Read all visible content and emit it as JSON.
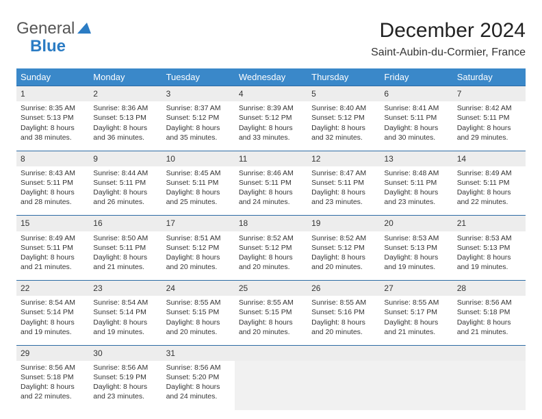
{
  "brand": {
    "part1": "General",
    "part2": "Blue"
  },
  "title": "December 2024",
  "location": "Saint-Aubin-du-Cormier, France",
  "colors": {
    "header_bg": "#3a88c9",
    "header_text": "#ffffff",
    "daynum_bg": "#ededed",
    "divider": "#2b6aa3",
    "text": "#333333",
    "brand_blue": "#2b7cc4"
  },
  "weekdays": [
    "Sunday",
    "Monday",
    "Tuesday",
    "Wednesday",
    "Thursday",
    "Friday",
    "Saturday"
  ],
  "weeks": [
    [
      {
        "n": "1",
        "sr": "Sunrise: 8:35 AM",
        "ss": "Sunset: 5:13 PM",
        "d1": "Daylight: 8 hours",
        "d2": "and 38 minutes."
      },
      {
        "n": "2",
        "sr": "Sunrise: 8:36 AM",
        "ss": "Sunset: 5:13 PM",
        "d1": "Daylight: 8 hours",
        "d2": "and 36 minutes."
      },
      {
        "n": "3",
        "sr": "Sunrise: 8:37 AM",
        "ss": "Sunset: 5:12 PM",
        "d1": "Daylight: 8 hours",
        "d2": "and 35 minutes."
      },
      {
        "n": "4",
        "sr": "Sunrise: 8:39 AM",
        "ss": "Sunset: 5:12 PM",
        "d1": "Daylight: 8 hours",
        "d2": "and 33 minutes."
      },
      {
        "n": "5",
        "sr": "Sunrise: 8:40 AM",
        "ss": "Sunset: 5:12 PM",
        "d1": "Daylight: 8 hours",
        "d2": "and 32 minutes."
      },
      {
        "n": "6",
        "sr": "Sunrise: 8:41 AM",
        "ss": "Sunset: 5:11 PM",
        "d1": "Daylight: 8 hours",
        "d2": "and 30 minutes."
      },
      {
        "n": "7",
        "sr": "Sunrise: 8:42 AM",
        "ss": "Sunset: 5:11 PM",
        "d1": "Daylight: 8 hours",
        "d2": "and 29 minutes."
      }
    ],
    [
      {
        "n": "8",
        "sr": "Sunrise: 8:43 AM",
        "ss": "Sunset: 5:11 PM",
        "d1": "Daylight: 8 hours",
        "d2": "and 28 minutes."
      },
      {
        "n": "9",
        "sr": "Sunrise: 8:44 AM",
        "ss": "Sunset: 5:11 PM",
        "d1": "Daylight: 8 hours",
        "d2": "and 26 minutes."
      },
      {
        "n": "10",
        "sr": "Sunrise: 8:45 AM",
        "ss": "Sunset: 5:11 PM",
        "d1": "Daylight: 8 hours",
        "d2": "and 25 minutes."
      },
      {
        "n": "11",
        "sr": "Sunrise: 8:46 AM",
        "ss": "Sunset: 5:11 PM",
        "d1": "Daylight: 8 hours",
        "d2": "and 24 minutes."
      },
      {
        "n": "12",
        "sr": "Sunrise: 8:47 AM",
        "ss": "Sunset: 5:11 PM",
        "d1": "Daylight: 8 hours",
        "d2": "and 23 minutes."
      },
      {
        "n": "13",
        "sr": "Sunrise: 8:48 AM",
        "ss": "Sunset: 5:11 PM",
        "d1": "Daylight: 8 hours",
        "d2": "and 23 minutes."
      },
      {
        "n": "14",
        "sr": "Sunrise: 8:49 AM",
        "ss": "Sunset: 5:11 PM",
        "d1": "Daylight: 8 hours",
        "d2": "and 22 minutes."
      }
    ],
    [
      {
        "n": "15",
        "sr": "Sunrise: 8:49 AM",
        "ss": "Sunset: 5:11 PM",
        "d1": "Daylight: 8 hours",
        "d2": "and 21 minutes."
      },
      {
        "n": "16",
        "sr": "Sunrise: 8:50 AM",
        "ss": "Sunset: 5:11 PM",
        "d1": "Daylight: 8 hours",
        "d2": "and 21 minutes."
      },
      {
        "n": "17",
        "sr": "Sunrise: 8:51 AM",
        "ss": "Sunset: 5:12 PM",
        "d1": "Daylight: 8 hours",
        "d2": "and 20 minutes."
      },
      {
        "n": "18",
        "sr": "Sunrise: 8:52 AM",
        "ss": "Sunset: 5:12 PM",
        "d1": "Daylight: 8 hours",
        "d2": "and 20 minutes."
      },
      {
        "n": "19",
        "sr": "Sunrise: 8:52 AM",
        "ss": "Sunset: 5:12 PM",
        "d1": "Daylight: 8 hours",
        "d2": "and 20 minutes."
      },
      {
        "n": "20",
        "sr": "Sunrise: 8:53 AM",
        "ss": "Sunset: 5:13 PM",
        "d1": "Daylight: 8 hours",
        "d2": "and 19 minutes."
      },
      {
        "n": "21",
        "sr": "Sunrise: 8:53 AM",
        "ss": "Sunset: 5:13 PM",
        "d1": "Daylight: 8 hours",
        "d2": "and 19 minutes."
      }
    ],
    [
      {
        "n": "22",
        "sr": "Sunrise: 8:54 AM",
        "ss": "Sunset: 5:14 PM",
        "d1": "Daylight: 8 hours",
        "d2": "and 19 minutes."
      },
      {
        "n": "23",
        "sr": "Sunrise: 8:54 AM",
        "ss": "Sunset: 5:14 PM",
        "d1": "Daylight: 8 hours",
        "d2": "and 19 minutes."
      },
      {
        "n": "24",
        "sr": "Sunrise: 8:55 AM",
        "ss": "Sunset: 5:15 PM",
        "d1": "Daylight: 8 hours",
        "d2": "and 20 minutes."
      },
      {
        "n": "25",
        "sr": "Sunrise: 8:55 AM",
        "ss": "Sunset: 5:15 PM",
        "d1": "Daylight: 8 hours",
        "d2": "and 20 minutes."
      },
      {
        "n": "26",
        "sr": "Sunrise: 8:55 AM",
        "ss": "Sunset: 5:16 PM",
        "d1": "Daylight: 8 hours",
        "d2": "and 20 minutes."
      },
      {
        "n": "27",
        "sr": "Sunrise: 8:55 AM",
        "ss": "Sunset: 5:17 PM",
        "d1": "Daylight: 8 hours",
        "d2": "and 21 minutes."
      },
      {
        "n": "28",
        "sr": "Sunrise: 8:56 AM",
        "ss": "Sunset: 5:18 PM",
        "d1": "Daylight: 8 hours",
        "d2": "and 21 minutes."
      }
    ],
    [
      {
        "n": "29",
        "sr": "Sunrise: 8:56 AM",
        "ss": "Sunset: 5:18 PM",
        "d1": "Daylight: 8 hours",
        "d2": "and 22 minutes."
      },
      {
        "n": "30",
        "sr": "Sunrise: 8:56 AM",
        "ss": "Sunset: 5:19 PM",
        "d1": "Daylight: 8 hours",
        "d2": "and 23 minutes."
      },
      {
        "n": "31",
        "sr": "Sunrise: 8:56 AM",
        "ss": "Sunset: 5:20 PM",
        "d1": "Daylight: 8 hours",
        "d2": "and 24 minutes."
      },
      null,
      null,
      null,
      null
    ]
  ]
}
